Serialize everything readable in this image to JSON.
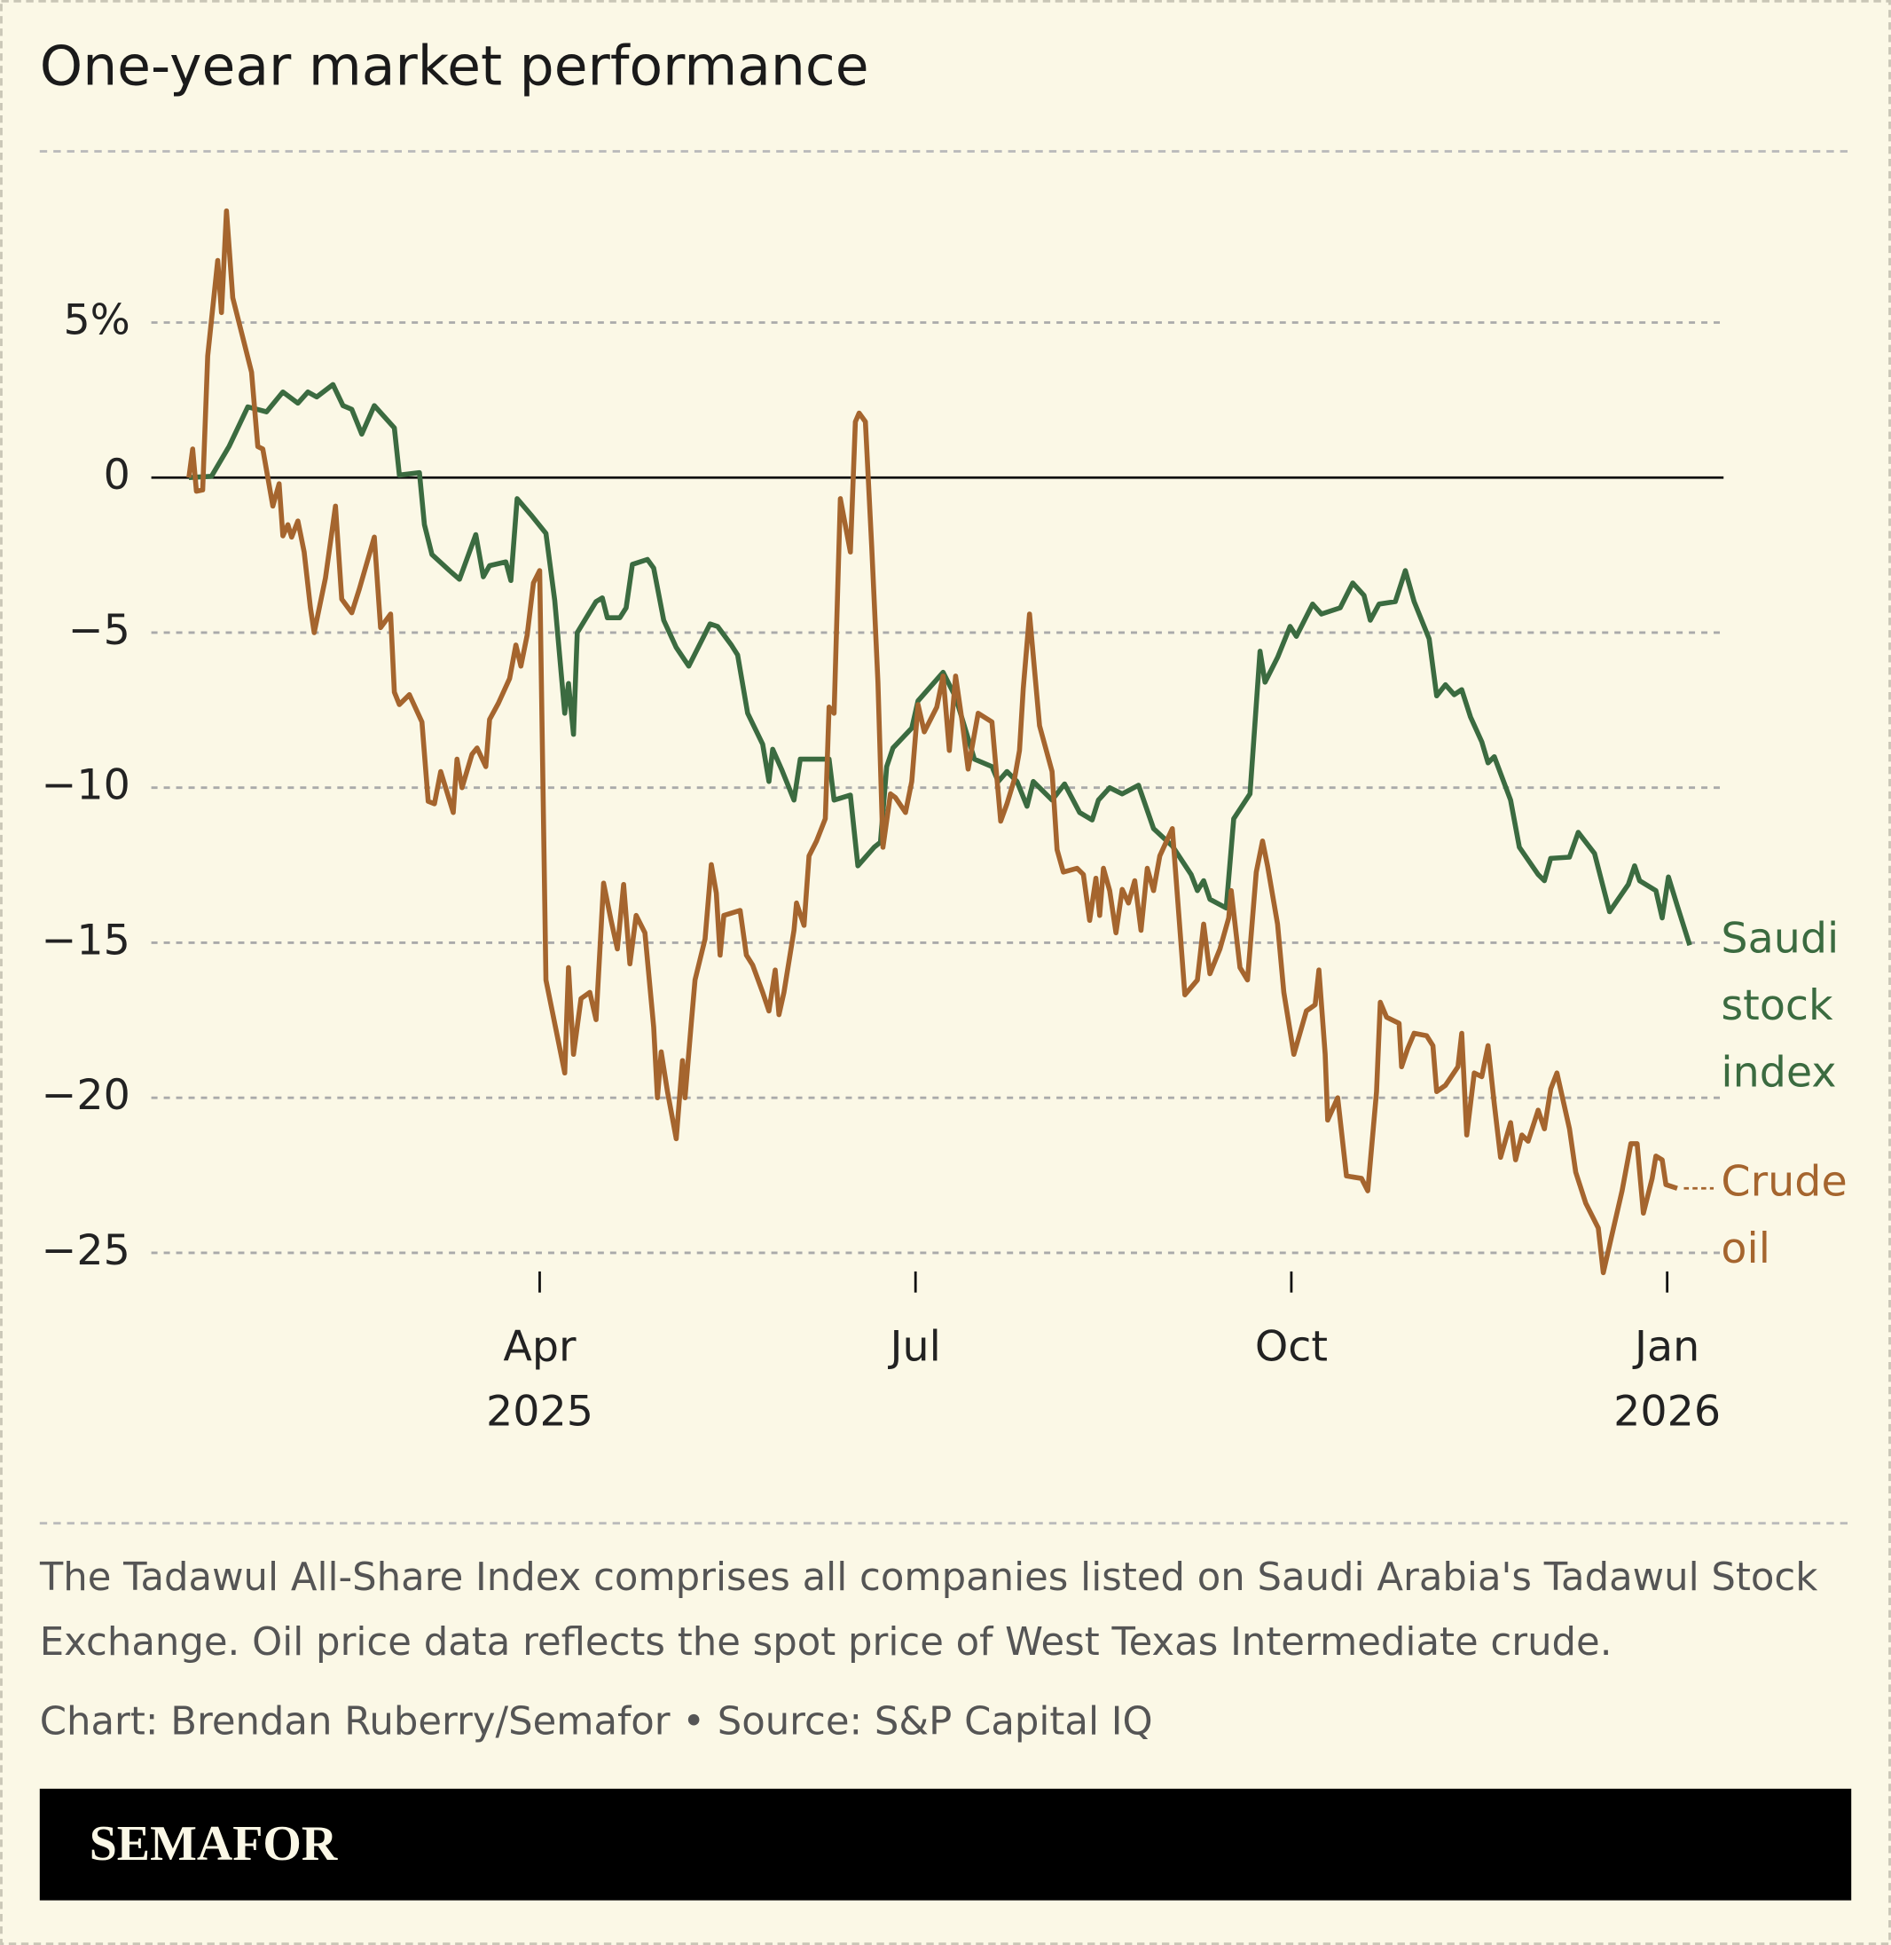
{
  "chart_data": {
    "type": "line",
    "title": "One-year market performance",
    "notes": "The Tadawul All-Share Index comprises all companies listed on Saudi Arabia's Tadawul Stock Exchange. Oil price data reflects the spot price of West Texas Intermediate crude.",
    "credit": "Chart: Brendan Ruberry/Semafor • Source: S&P Capital IQ",
    "brand": "SEMAFOR",
    "xlim": [
      -0.1,
      12.45
    ],
    "ylim": [
      -26,
      9
    ],
    "xticks": [
      {
        "value": 3,
        "label": "Apr 2025"
      },
      {
        "value": 6,
        "label": "Jul"
      },
      {
        "value": 9,
        "label": "Oct"
      },
      {
        "value": 12,
        "label": "Jan 2026"
      }
    ],
    "yticks": [
      {
        "value": 5,
        "label": "5%"
      },
      0,
      {
        "value": -5,
        "label": "−5"
      },
      {
        "value": -10,
        "label": "−10"
      },
      {
        "value": -15,
        "label": "−15"
      },
      {
        "value": -20,
        "label": "−20"
      },
      {
        "value": -25,
        "label": "−25"
      }
    ],
    "grid": true,
    "series": [
      {
        "name": "Saudi stock index",
        "color": "#3b6b40",
        "x": [
          0.2,
          0.38,
          0.52,
          0.67,
          0.82,
          0.95,
          1.07,
          1.15,
          1.22,
          1.35,
          1.43,
          1.5,
          1.58,
          1.68,
          1.84,
          1.88,
          2.04,
          2.08,
          2.14,
          2.28,
          2.36,
          2.49,
          2.55,
          2.6,
          2.73,
          2.77,
          2.82,
          2.93,
          3.05,
          3.12,
          3.2,
          3.23,
          3.27,
          3.3,
          3.45,
          3.5,
          3.54,
          3.64,
          3.69,
          3.74,
          3.86,
          3.91,
          3.99,
          4.09,
          4.19,
          4.36,
          4.42,
          4.53,
          4.58,
          4.66,
          4.78,
          4.83,
          4.86,
          4.93,
          5.03,
          5.08,
          5.31,
          5.35,
          5.48,
          5.54,
          5.67,
          5.72,
          5.77,
          5.82,
          5.97,
          6.02,
          6.22,
          6.32,
          6.47,
          6.61,
          6.66,
          6.73,
          6.81,
          6.89,
          6.94,
          7.09,
          7.19,
          7.31,
          7.41,
          7.46,
          7.55,
          7.65,
          7.78,
          7.9,
          8.05,
          8.2,
          8.25,
          8.3,
          8.35,
          8.48,
          8.54,
          8.67,
          8.75,
          8.79,
          8.89,
          8.99,
          9.04,
          9.17,
          9.24,
          9.39,
          9.49,
          9.58,
          9.63,
          9.7,
          9.83,
          9.91,
          9.98,
          10.1,
          10.16,
          10.23,
          10.3,
          10.36,
          10.43,
          10.52,
          10.57,
          10.62,
          10.75,
          10.82,
          10.97,
          11.02,
          11.07,
          11.22,
          11.29,
          11.42,
          11.54,
          11.69,
          11.74,
          11.78,
          11.91,
          11.96,
          12.01,
          12.08,
          12.18
        ],
        "values": [
          0,
          0.04,
          1.0,
          2.28,
          2.12,
          2.76,
          2.4,
          2.76,
          2.6,
          3.0,
          2.32,
          2.2,
          1.4,
          2.32,
          1.6,
          0.08,
          0.16,
          -1.52,
          -2.48,
          -3.0,
          -3.28,
          -1.84,
          -3.2,
          -2.84,
          -2.72,
          -3.32,
          -0.68,
          -1.2,
          -1.8,
          -3.96,
          -7.6,
          -6.64,
          -8.28,
          -5.0,
          -4.0,
          -3.88,
          -4.52,
          -4.52,
          -4.2,
          -2.8,
          -2.64,
          -2.92,
          -4.6,
          -5.48,
          -6.08,
          -4.72,
          -4.8,
          -5.4,
          -5.72,
          -7.6,
          -8.6,
          -9.8,
          -8.76,
          -9.4,
          -10.4,
          -9.08,
          -9.08,
          -10.4,
          -10.24,
          -12.52,
          -11.92,
          -11.76,
          -9.32,
          -8.72,
          -8.08,
          -7.2,
          -6.28,
          -7.08,
          -9.08,
          -9.32,
          -9.8,
          -9.48,
          -9.8,
          -10.6,
          -9.8,
          -10.4,
          -9.88,
          -10.8,
          -11.04,
          -10.4,
          -10.0,
          -10.2,
          -9.92,
          -11.32,
          -11.88,
          -12.8,
          -13.32,
          -13.0,
          -13.6,
          -13.88,
          -11.0,
          -10.2,
          -5.6,
          -6.6,
          -5.8,
          -4.8,
          -5.12,
          -4.08,
          -4.4,
          -4.2,
          -3.4,
          -3.8,
          -4.6,
          -4.08,
          -4.0,
          -3.0,
          -4.0,
          -5.2,
          -7.04,
          -6.68,
          -7.0,
          -6.84,
          -7.72,
          -8.52,
          -9.2,
          -9.0,
          -10.4,
          -11.92,
          -12.8,
          -13.0,
          -12.28,
          -12.24,
          -11.44,
          -12.12,
          -14.0,
          -13.12,
          -12.52,
          -13.0,
          -13.32,
          -14.2,
          -12.88,
          -13.8,
          -15.08
        ]
      },
      {
        "name": "Crude oil",
        "color": "#a5652e",
        "x": [
          0.2,
          0.23,
          0.26,
          0.31,
          0.35,
          0.43,
          0.46,
          0.5,
          0.55,
          0.62,
          0.7,
          0.75,
          0.79,
          0.87,
          0.92,
          0.95,
          0.99,
          1.02,
          1.07,
          1.12,
          1.17,
          1.2,
          1.29,
          1.37,
          1.42,
          1.5,
          1.56,
          1.68,
          1.73,
          1.81,
          1.84,
          1.88,
          1.96,
          2.06,
          2.11,
          2.16,
          2.21,
          2.31,
          2.34,
          2.38,
          2.46,
          2.5,
          2.57,
          2.6,
          2.67,
          2.76,
          2.81,
          2.85,
          2.9,
          2.95,
          3.0,
          3.05,
          3.13,
          3.2,
          3.23,
          3.27,
          3.33,
          3.4,
          3.45,
          3.51,
          3.57,
          3.62,
          3.67,
          3.72,
          3.77,
          3.84,
          3.91,
          3.94,
          3.97,
          4.02,
          4.09,
          4.14,
          4.16,
          4.21,
          4.24,
          4.32,
          4.37,
          4.41,
          4.44,
          4.47,
          4.6,
          4.65,
          4.7,
          4.78,
          4.83,
          4.88,
          4.91,
          4.95,
          5.03,
          5.05,
          5.11,
          5.15,
          5.21,
          5.28,
          5.31,
          5.35,
          5.4,
          5.48,
          5.52,
          5.55,
          5.6,
          5.65,
          5.7,
          5.74,
          5.8,
          5.84,
          5.92,
          5.97,
          6.02,
          6.07,
          6.17,
          6.22,
          6.27,
          6.32,
          6.37,
          6.42,
          6.5,
          6.61,
          6.68,
          6.73,
          6.79,
          6.83,
          6.86,
          6.91,
          6.99,
          7.09,
          7.13,
          7.18,
          7.29,
          7.34,
          7.39,
          7.44,
          7.47,
          7.5,
          7.55,
          7.6,
          7.65,
          7.7,
          7.75,
          7.8,
          7.85,
          7.9,
          7.95,
          8.05,
          8.1,
          8.15,
          8.25,
          8.3,
          8.35,
          8.43,
          8.5,
          8.52,
          8.59,
          8.65,
          8.72,
          8.77,
          8.81,
          8.89,
          8.94,
          9.02,
          9.12,
          9.19,
          9.22,
          9.27,
          9.29,
          9.37,
          9.44,
          9.56,
          9.61,
          9.68,
          9.71,
          9.76,
          9.86,
          9.88,
          9.93,
          9.98,
          10.08,
          10.13,
          10.16,
          10.23,
          10.33,
          10.36,
          10.4,
          10.46,
          10.52,
          10.57,
          10.62,
          10.67,
          10.75,
          10.79,
          10.84,
          10.89,
          10.97,
          11.02,
          11.07,
          11.12,
          11.22,
          11.27,
          11.35,
          11.45,
          11.49,
          11.56,
          11.64,
          11.71,
          11.76,
          11.81,
          11.88,
          11.91,
          11.96,
          11.99,
          12.08
        ],
        "values": [
          0,
          0.92,
          -0.44,
          -0.4,
          3.92,
          7.0,
          5.32,
          8.6,
          5.8,
          4.68,
          3.4,
          1.0,
          0.92,
          -0.92,
          -0.2,
          -1.88,
          -1.52,
          -1.92,
          -1.4,
          -2.4,
          -4.2,
          -5.0,
          -3.24,
          -0.92,
          -3.92,
          -4.36,
          -3.6,
          -1.92,
          -4.84,
          -4.4,
          -6.92,
          -7.32,
          -7.0,
          -7.88,
          -10.44,
          -10.52,
          -9.48,
          -10.8,
          -9.08,
          -10.0,
          -8.92,
          -8.72,
          -9.32,
          -7.8,
          -7.28,
          -6.48,
          -5.4,
          -6.08,
          -5.08,
          -3.4,
          -3.0,
          -16.2,
          -17.8,
          -19.2,
          -15.8,
          -18.6,
          -16.8,
          -16.6,
          -17.48,
          -13.08,
          -14.28,
          -15.2,
          -13.12,
          -15.68,
          -14.12,
          -14.68,
          -17.72,
          -20.0,
          -18.52,
          -19.8,
          -21.32,
          -18.8,
          -20.0,
          -17.6,
          -16.2,
          -14.88,
          -12.48,
          -13.4,
          -15.4,
          -14.12,
          -13.96,
          -15.4,
          -15.72,
          -16.6,
          -17.2,
          -15.88,
          -17.32,
          -16.6,
          -14.6,
          -13.72,
          -14.44,
          -12.2,
          -11.72,
          -11.0,
          -7.4,
          -7.6,
          -0.68,
          -2.4,
          1.8,
          2.08,
          1.8,
          -2.2,
          -6.6,
          -11.92,
          -10.2,
          -10.32,
          -10.8,
          -9.8,
          -7.32,
          -8.2,
          -7.4,
          -6.4,
          -8.8,
          -6.4,
          -7.8,
          -9.4,
          -7.6,
          -7.88,
          -11.08,
          -10.52,
          -9.72,
          -8.8,
          -6.8,
          -4.4,
          -8.0,
          -9.48,
          -12.0,
          -12.72,
          -12.6,
          -12.8,
          -14.28,
          -12.92,
          -14.12,
          -12.6,
          -13.32,
          -14.68,
          -13.28,
          -13.72,
          -13.0,
          -14.6,
          -12.6,
          -13.32,
          -12.2,
          -11.32,
          -14.0,
          -16.68,
          -16.2,
          -14.4,
          -16.0,
          -15.2,
          -14.2,
          -13.32,
          -15.8,
          -16.2,
          -12.72,
          -11.72,
          -12.52,
          -14.4,
          -16.6,
          -18.6,
          -17.2,
          -17.0,
          -15.88,
          -18.6,
          -20.72,
          -20.0,
          -22.52,
          -22.6,
          -23.0,
          -19.8,
          -16.92,
          -17.4,
          -17.6,
          -19.0,
          -18.4,
          -17.92,
          -18.0,
          -18.32,
          -19.8,
          -19.6,
          -19.0,
          -17.92,
          -21.2,
          -19.2,
          -19.32,
          -18.32,
          -20.2,
          -21.92,
          -20.8,
          -22.0,
          -21.2,
          -21.4,
          -20.4,
          -21.0,
          -19.72,
          -19.2,
          -21.0,
          -22.4,
          -23.4,
          -24.2,
          -25.64,
          -24.4,
          -23.0,
          -21.48,
          -21.48,
          -23.72,
          -22.6,
          -21.88,
          -22.0,
          -22.8,
          -22.92
        ]
      }
    ]
  }
}
